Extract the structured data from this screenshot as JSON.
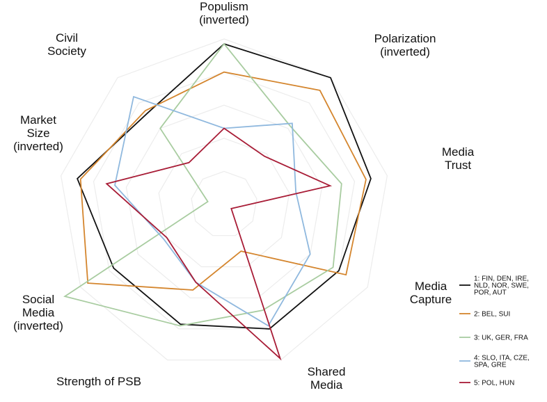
{
  "chart_data": {
    "type": "radar",
    "axes": [
      {
        "label_lines": [
          "Populism",
          "(inverted)"
        ]
      },
      {
        "label_lines": [
          "Polarization",
          "(inverted)"
        ]
      },
      {
        "label_lines": [
          "Media",
          "Trust"
        ]
      },
      {
        "label_lines": [
          "Media",
          "Capture"
        ]
      },
      {
        "label_lines": [
          "Shared",
          "Media"
        ]
      },
      {
        "label_lines": [
          "Strength of PSB"
        ]
      },
      {
        "label_lines": [
          "Social",
          "Media",
          "(inverted)"
        ]
      },
      {
        "label_lines": [
          "Market",
          "Size",
          "(inverted)"
        ]
      },
      {
        "label_lines": [
          "Civil",
          "Society"
        ]
      }
    ],
    "rlim": [
      0,
      1
    ],
    "grid_levels": [
      0.2,
      0.4,
      0.6,
      0.8,
      1.0
    ],
    "grid": true,
    "legend_position": "right",
    "series": [
      {
        "name_lines": [
          "1: FIN, DEN, IRE,",
          "NLD, NOR, SWE,",
          "POR, AUT"
        ],
        "color": "#111111",
        "values": [
          0.97,
          1.0,
          0.9,
          0.8,
          0.8,
          0.77,
          0.77,
          0.9,
          0.72
        ]
      },
      {
        "name_lines": [
          "2: BEL, SUI"
        ],
        "color": "#d4852d",
        "values": [
          0.8,
          0.9,
          0.87,
          0.85,
          0.3,
          0.55,
          0.95,
          0.88,
          0.74
        ]
      },
      {
        "name_lines": [
          "3: UK, GER, FRA"
        ],
        "color": "#a8cca0",
        "values": [
          0.97,
          0.62,
          0.72,
          0.76,
          0.68,
          0.78,
          1.11,
          0.1,
          0.6
        ]
      },
      {
        "name_lines": [
          "4: SLO, ITA, CZE,",
          "SPA, GRE"
        ],
        "color": "#8fb8de",
        "values": [
          0.46,
          0.64,
          0.44,
          0.6,
          0.78,
          0.5,
          0.42,
          0.67,
          0.85
        ]
      },
      {
        "name_lines": [
          "5: POL, HUN"
        ],
        "color": "#a81c36",
        "values": [
          0.46,
          0.38,
          0.65,
          0.05,
          0.99,
          0.5,
          0.4,
          0.72,
          0.33
        ]
      }
    ]
  }
}
